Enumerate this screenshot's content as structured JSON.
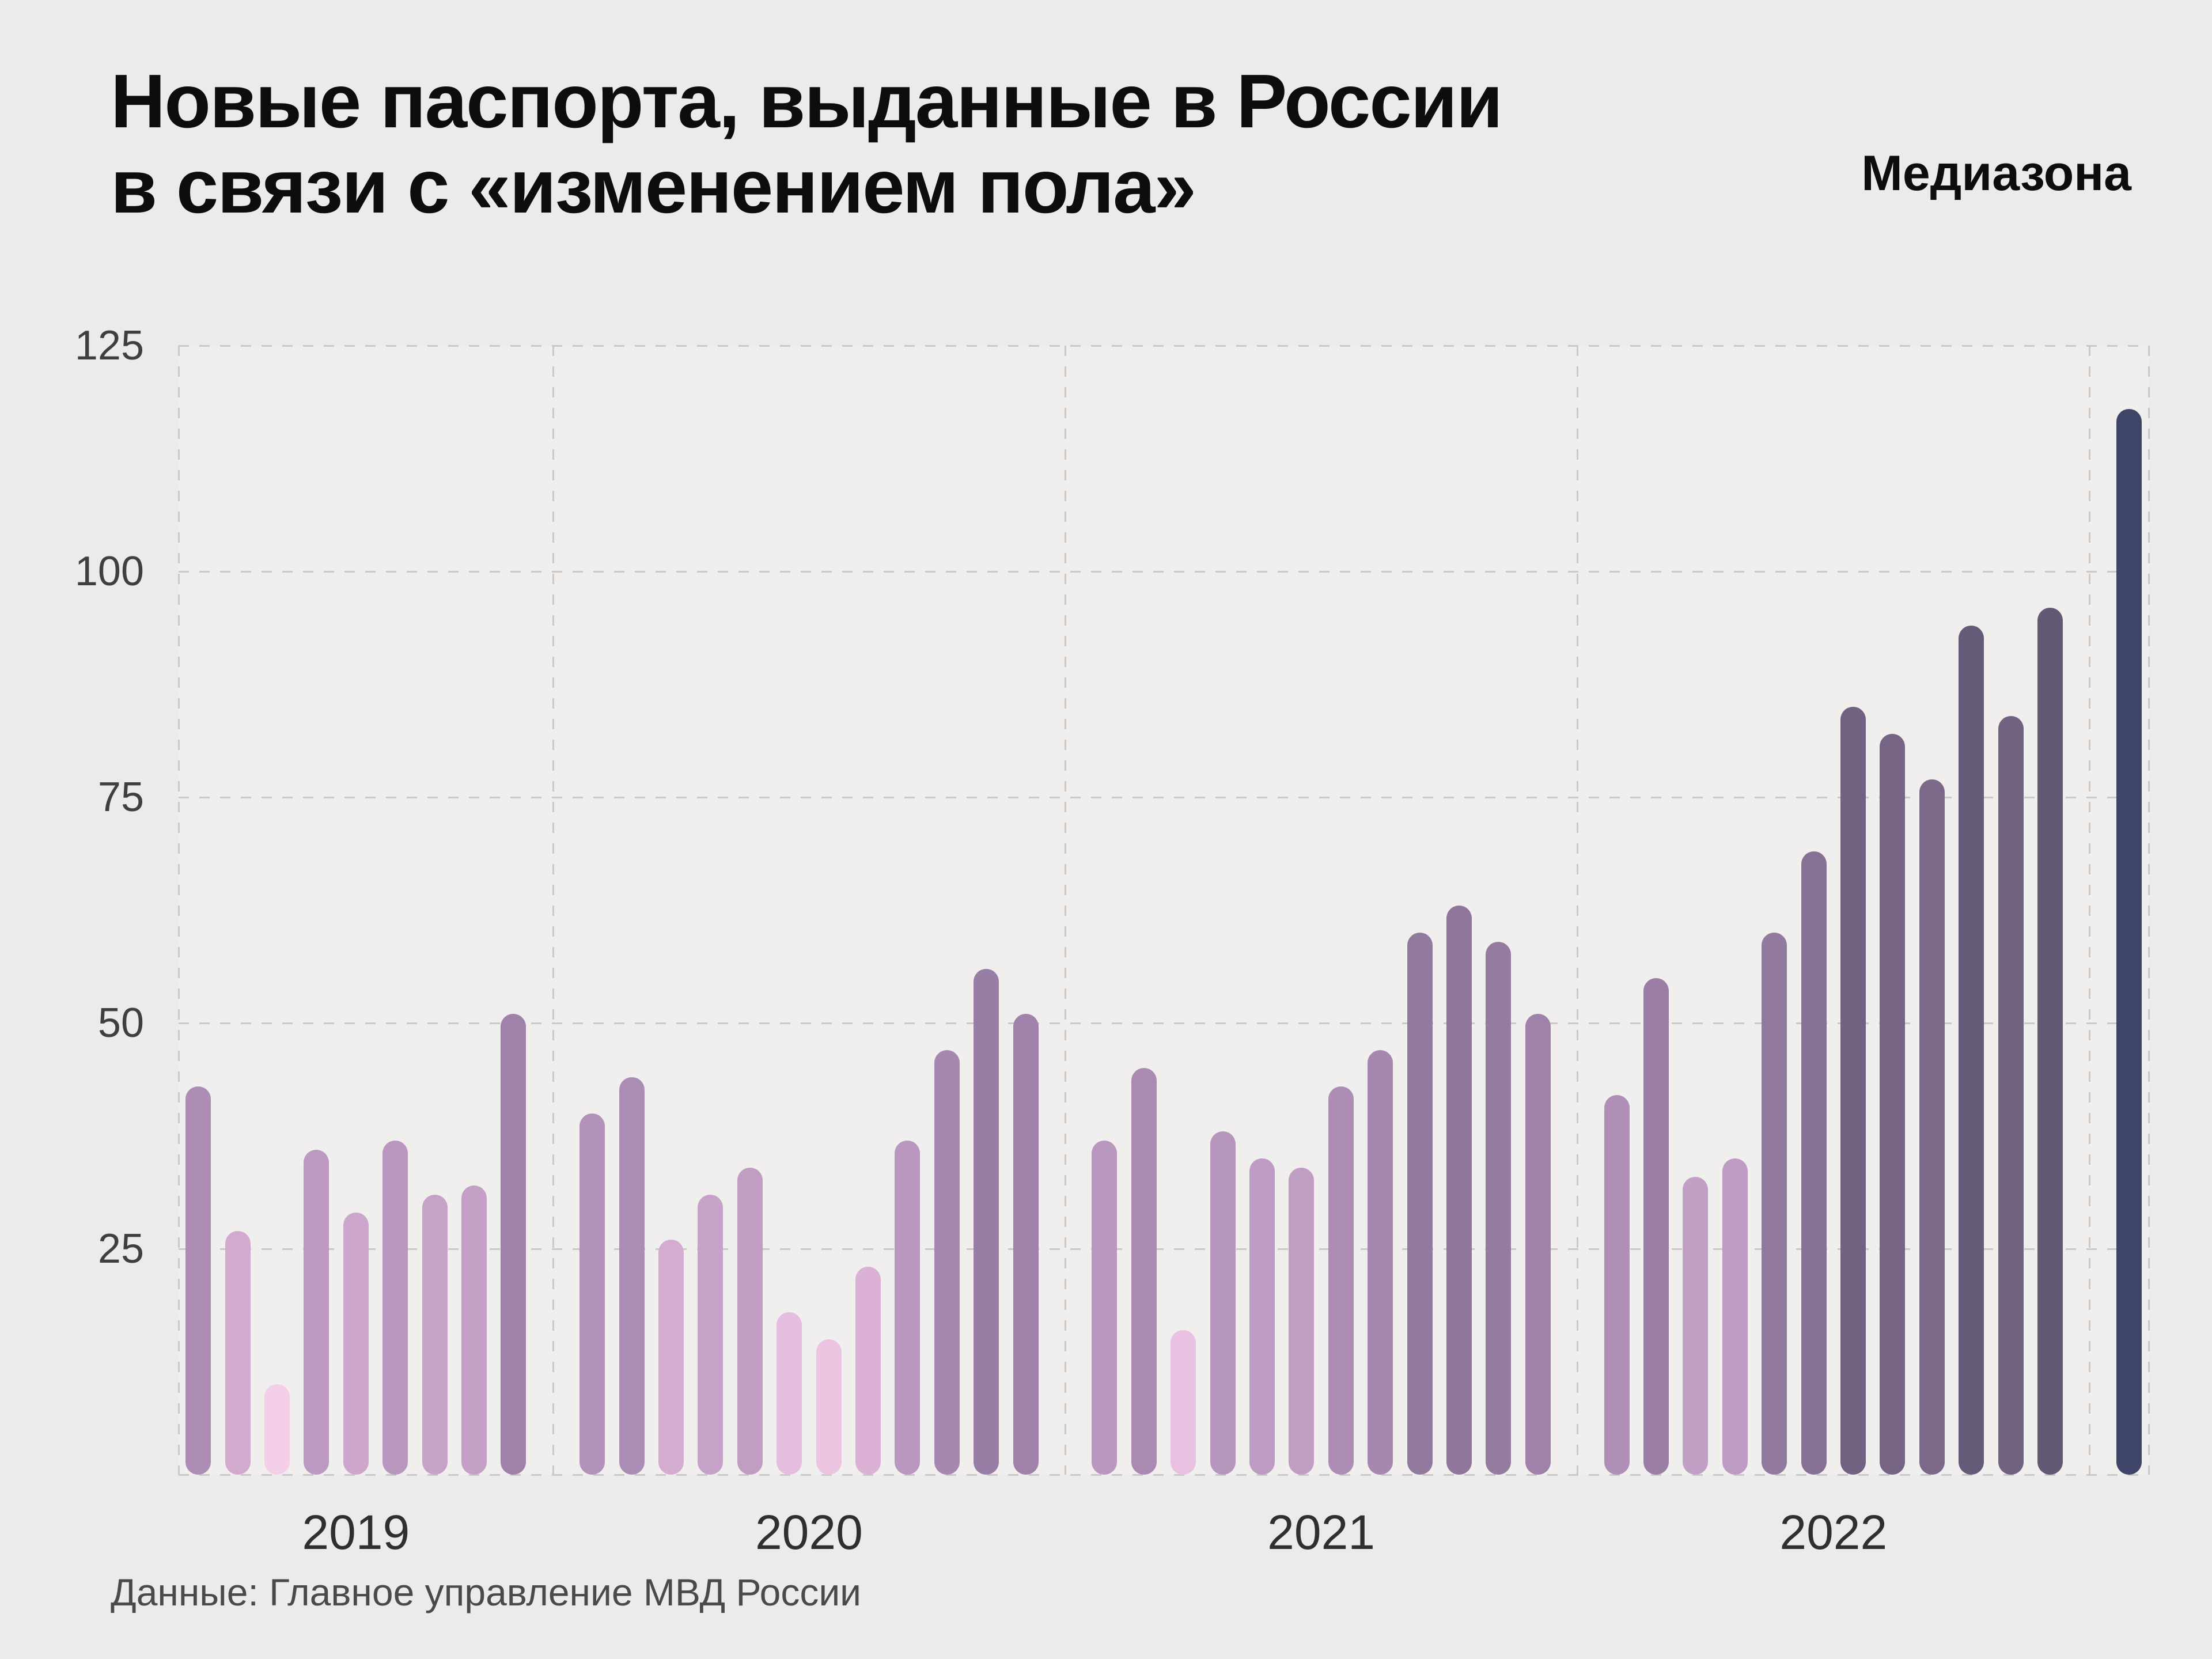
{
  "header": {
    "title_line1": "Новые паспорта, выданные в России",
    "title_line2": "в связи с «изменением пола»",
    "brand": "Медиазона"
  },
  "footer": {
    "source": "Данные: Главное управление МВД России"
  },
  "chart_data": {
    "type": "bar",
    "title": "Новые паспорта, выданные в России в связи с «изменением пола»",
    "ylim": [
      0,
      125
    ],
    "y_ticks": [
      25,
      50,
      75,
      100,
      125
    ],
    "grid": "dashed",
    "x_year_labels": [
      "2019",
      "2020",
      "2021",
      "2022"
    ],
    "groups": [
      {
        "label": "2019",
        "values": [
          43,
          27,
          10,
          36,
          29,
          37,
          31,
          32,
          51
        ]
      },
      {
        "label": "2020",
        "values": [
          40,
          44,
          26,
          31,
          34,
          18,
          15,
          23,
          37,
          47,
          56,
          51
        ]
      },
      {
        "label": "2021",
        "values": [
          37,
          45,
          16,
          38,
          35,
          34,
          43,
          47,
          60,
          63,
          59,
          51
        ]
      },
      {
        "label": "2022",
        "values": [
          42,
          55,
          33,
          35,
          60,
          69,
          85,
          82,
          77,
          94,
          84,
          96
        ]
      },
      {
        "label": "",
        "values": [
          118
        ]
      }
    ],
    "colors": {
      "stops": [
        {
          "value": 10,
          "color": "#f3cfe9"
        },
        {
          "value": 20,
          "color": "#e2b8db"
        },
        {
          "value": 30,
          "color": "#c9a4c9"
        },
        {
          "value": 40,
          "color": "#b292ba"
        },
        {
          "value": 50,
          "color": "#a182ab"
        },
        {
          "value": 60,
          "color": "#927a9f"
        },
        {
          "value": 70,
          "color": "#857093"
        },
        {
          "value": 80,
          "color": "#786686"
        },
        {
          "value": 90,
          "color": "#6a5d7c"
        },
        {
          "value": 97,
          "color": "#615874"
        },
        {
          "value": 118,
          "color": "#3f4566"
        }
      ]
    }
  }
}
